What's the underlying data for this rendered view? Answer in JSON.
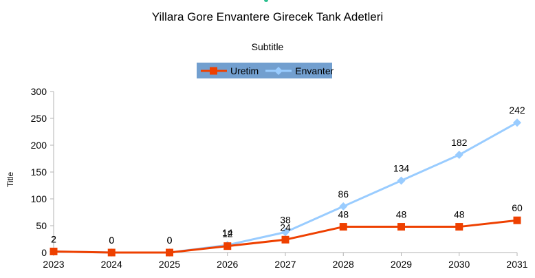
{
  "chart_data": {
    "type": "line",
    "title": "Yillara Gore Envantere Girecek Tank Adetleri",
    "subtitle": "Subtitle",
    "xlabel": "",
    "ylabel": "Title",
    "categories": [
      "2023",
      "2024",
      "2025",
      "2026",
      "2027",
      "2028",
      "2029",
      "2030",
      "2031"
    ],
    "yticks": [
      "0",
      "50",
      "100",
      "150",
      "200",
      "250",
      "300"
    ],
    "ylim": [
      0,
      300
    ],
    "grid": false,
    "legend_position": "top-center",
    "series": [
      {
        "name": "Uretim",
        "values": [
          2,
          0,
          0,
          12,
          24,
          48,
          48,
          48,
          60
        ],
        "color": "#ee4000",
        "marker": "square",
        "labels": [
          "2",
          "0",
          "0",
          "12",
          "24",
          "48",
          "48",
          "48",
          "60"
        ]
      },
      {
        "name": "Envanter",
        "values": [
          2,
          0,
          0,
          14,
          38,
          86,
          134,
          182,
          242
        ],
        "color": "#99ccff",
        "marker": "diamond",
        "labels": [
          "2",
          "0",
          "0",
          "14",
          "38",
          "86",
          "134",
          "182",
          "242"
        ]
      }
    ]
  }
}
